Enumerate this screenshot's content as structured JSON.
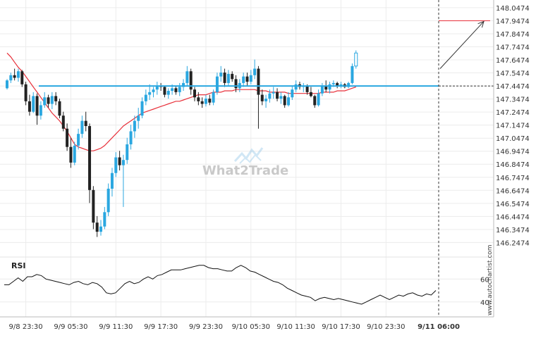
{
  "watermark": {
    "text": "What2Trade"
  },
  "side_credit": "www.autochartist.com",
  "chart_data": {
    "type": "candlestick",
    "price_axis": {
      "ticks": [
        "148.0474",
        "147.9474",
        "147.8474",
        "147.7474",
        "147.6474",
        "147.5474",
        "147.4474",
        "147.3474",
        "147.2474",
        "147.1474",
        "147.0474",
        "146.9474",
        "146.8474",
        "146.7474",
        "146.6474",
        "146.5474",
        "146.4474",
        "146.3474",
        "146.2474"
      ],
      "range": [
        146.174,
        148.074
      ]
    },
    "time_axis": {
      "labels": [
        "9/8 23:30",
        "9/9 05:30",
        "9/9 11:30",
        "9/9 17:30",
        "9/9 23:30",
        "9/10 05:30",
        "9/10 11:30",
        "9/10 17:30",
        "9/10 23:30",
        "9/11 06:00"
      ],
      "bars_between_labels": 12
    },
    "candles": [
      [
        147.43,
        147.5,
        147.42,
        147.49
      ],
      [
        147.49,
        147.55,
        147.47,
        147.53
      ],
      [
        147.53,
        147.58,
        147.49,
        147.51
      ],
      [
        147.51,
        147.58,
        147.48,
        147.56
      ],
      [
        147.56,
        147.57,
        147.44,
        147.46
      ],
      [
        147.46,
        147.48,
        147.3,
        147.33
      ],
      [
        147.33,
        147.38,
        147.22,
        147.25
      ],
      [
        147.25,
        147.4,
        147.24,
        147.37
      ],
      [
        147.37,
        147.39,
        147.15,
        147.22
      ],
      [
        147.22,
        147.33,
        147.19,
        147.3
      ],
      [
        147.3,
        147.4,
        147.28,
        147.36
      ],
      [
        147.36,
        147.38,
        147.28,
        147.31
      ],
      [
        147.31,
        147.4,
        147.27,
        147.37
      ],
      [
        147.37,
        147.4,
        147.3,
        147.33
      ],
      [
        147.33,
        147.35,
        147.2,
        147.22
      ],
      [
        147.22,
        147.25,
        147.1,
        147.12
      ],
      [
        147.12,
        147.16,
        146.95,
        146.98
      ],
      [
        146.98,
        147.05,
        146.82,
        146.86
      ],
      [
        146.86,
        147.02,
        146.84,
        146.99
      ],
      [
        146.99,
        147.12,
        146.96,
        147.08
      ],
      [
        147.08,
        147.22,
        147.05,
        147.18
      ],
      [
        147.18,
        147.25,
        147.1,
        147.14
      ],
      [
        147.14,
        147.16,
        146.55,
        146.65
      ],
      [
        146.65,
        146.68,
        146.35,
        146.4
      ],
      [
        146.4,
        146.45,
        146.29,
        146.33
      ],
      [
        146.33,
        146.42,
        146.3,
        146.37
      ],
      [
        146.37,
        146.52,
        146.35,
        146.48
      ],
      [
        146.48,
        146.7,
        146.45,
        146.66
      ],
      [
        146.66,
        146.82,
        146.6,
        146.78
      ],
      [
        146.78,
        146.94,
        146.75,
        146.9
      ],
      [
        146.9,
        146.95,
        146.8,
        146.84
      ],
      [
        146.84,
        146.92,
        146.52,
        146.88
      ],
      [
        146.88,
        147.05,
        146.85,
        147.0
      ],
      [
        147.0,
        147.15,
        146.96,
        147.1
      ],
      [
        147.1,
        147.22,
        147.05,
        147.18
      ],
      [
        147.18,
        147.28,
        147.12,
        147.22
      ],
      [
        147.22,
        147.36,
        147.2,
        147.33
      ],
      [
        147.33,
        147.42,
        147.3,
        147.38
      ],
      [
        147.38,
        147.46,
        147.34,
        147.4
      ],
      [
        147.4,
        147.44,
        147.36,
        147.42
      ],
      [
        147.42,
        147.48,
        147.38,
        147.45
      ],
      [
        147.45,
        147.47,
        147.41,
        147.44
      ],
      [
        147.44,
        147.45,
        147.36,
        147.38
      ],
      [
        147.38,
        147.43,
        147.35,
        147.41
      ],
      [
        147.41,
        147.46,
        147.38,
        147.43
      ],
      [
        147.43,
        147.45,
        147.38,
        147.4
      ],
      [
        147.4,
        147.47,
        147.37,
        147.44
      ],
      [
        147.44,
        147.5,
        147.41,
        147.47
      ],
      [
        147.47,
        147.6,
        147.45,
        147.56
      ],
      [
        147.56,
        147.58,
        147.38,
        147.42
      ],
      [
        147.42,
        147.44,
        147.33,
        147.36
      ],
      [
        147.36,
        147.4,
        147.3,
        147.33
      ],
      [
        147.33,
        147.36,
        147.28,
        147.31
      ],
      [
        147.31,
        147.38,
        147.29,
        147.35
      ],
      [
        147.35,
        147.38,
        147.3,
        147.32
      ],
      [
        147.32,
        147.42,
        147.3,
        147.4
      ],
      [
        147.4,
        147.55,
        147.38,
        147.52
      ],
      [
        147.52,
        147.6,
        147.48,
        147.55
      ],
      [
        147.55,
        147.58,
        147.44,
        147.47
      ],
      [
        147.47,
        147.57,
        147.45,
        147.54
      ],
      [
        147.54,
        147.56,
        147.48,
        147.5
      ],
      [
        147.5,
        147.53,
        147.4,
        147.43
      ],
      [
        147.43,
        147.5,
        147.4,
        147.47
      ],
      [
        147.47,
        147.55,
        147.44,
        147.52
      ],
      [
        147.52,
        147.55,
        147.45,
        147.48
      ],
      [
        147.48,
        147.57,
        147.46,
        147.53
      ],
      [
        147.53,
        147.65,
        147.5,
        147.58
      ],
      [
        147.58,
        147.6,
        147.12,
        147.38
      ],
      [
        147.38,
        147.42,
        147.3,
        147.33
      ],
      [
        147.33,
        147.38,
        147.28,
        147.35
      ],
      [
        147.35,
        147.42,
        147.32,
        147.39
      ],
      [
        147.39,
        147.44,
        147.35,
        147.4
      ],
      [
        147.4,
        147.43,
        147.33,
        147.35
      ],
      [
        147.35,
        147.4,
        147.31,
        147.37
      ],
      [
        147.37,
        147.38,
        147.28,
        147.3
      ],
      [
        147.3,
        147.4,
        147.29,
        147.36
      ],
      [
        147.36,
        147.45,
        147.34,
        147.42
      ],
      [
        147.42,
        147.49,
        147.4,
        147.46
      ],
      [
        147.46,
        147.48,
        147.42,
        147.44
      ],
      [
        147.44,
        147.47,
        147.4,
        147.45
      ],
      [
        147.45,
        147.46,
        147.38,
        147.4
      ],
      [
        147.4,
        147.44,
        147.36,
        147.37
      ],
      [
        147.37,
        147.38,
        147.28,
        147.3
      ],
      [
        147.3,
        147.42,
        147.29,
        147.39
      ],
      [
        147.39,
        147.47,
        147.37,
        147.45
      ],
      [
        147.45,
        147.49,
        147.4,
        147.42
      ],
      [
        147.42,
        147.48,
        147.39,
        147.46
      ],
      [
        147.46,
        147.49,
        147.44,
        147.47
      ],
      [
        147.47,
        147.48,
        147.43,
        147.45
      ],
      [
        147.45,
        147.48,
        147.43,
        147.46
      ],
      [
        147.46,
        147.47,
        147.43,
        147.44
      ],
      [
        147.44,
        147.48,
        147.43,
        147.47
      ],
      [
        147.47,
        147.62,
        147.46,
        147.6
      ],
      [
        147.6,
        147.72,
        147.58,
        147.7
      ]
    ],
    "moving_average": [
      147.7,
      147.67,
      147.63,
      147.59,
      147.56,
      147.52,
      147.48,
      147.44,
      147.4,
      147.36,
      147.32,
      147.28,
      147.24,
      147.21,
      147.18,
      147.14,
      147.1,
      147.05,
      147.0,
      146.98,
      146.97,
      146.96,
      146.95,
      146.95,
      146.96,
      146.97,
      146.99,
      147.02,
      147.05,
      147.08,
      147.11,
      147.14,
      147.16,
      147.18,
      147.2,
      147.22,
      147.24,
      147.25,
      147.26,
      147.27,
      147.28,
      147.29,
      147.3,
      147.31,
      147.32,
      147.33,
      147.33,
      147.34,
      147.35,
      147.36,
      147.37,
      147.38,
      147.38,
      147.38,
      147.39,
      147.4,
      147.4,
      147.4,
      147.41,
      147.41,
      147.41,
      147.42,
      147.42,
      147.42,
      147.42,
      147.42,
      147.42,
      147.41,
      147.41,
      147.41,
      147.4,
      147.4,
      147.4,
      147.4,
      147.4,
      147.39,
      147.39,
      147.39,
      147.39,
      147.39,
      147.39,
      147.39,
      147.39,
      147.39,
      147.4,
      147.4,
      147.4,
      147.4,
      147.41,
      147.41,
      147.41,
      147.42,
      147.43,
      147.44
    ],
    "support_level": 147.4474,
    "projection": {
      "from": 147.58,
      "to": 147.9474
    },
    "rsi": {
      "label": "RSI",
      "ticks": [
        60,
        40
      ],
      "values": [
        55,
        55,
        58,
        61,
        58,
        62,
        62,
        64,
        63,
        60,
        59,
        58,
        57,
        56,
        55,
        57,
        58,
        56,
        55,
        57,
        56,
        53,
        48,
        47,
        48,
        52,
        56,
        58,
        56,
        57,
        60,
        62,
        60,
        63,
        64,
        66,
        68,
        68,
        68,
        69,
        70,
        71,
        72,
        72,
        70,
        69,
        69,
        68,
        67,
        67,
        70,
        72,
        70,
        67,
        66,
        64,
        62,
        60,
        58,
        57,
        55,
        52,
        50,
        48,
        46,
        45,
        44,
        41,
        43,
        44,
        43,
        42,
        43,
        42,
        41,
        40,
        39,
        38,
        40,
        42,
        44,
        46,
        44,
        42,
        44,
        46,
        45,
        47,
        48,
        46,
        45,
        47,
        46,
        50
      ]
    }
  }
}
